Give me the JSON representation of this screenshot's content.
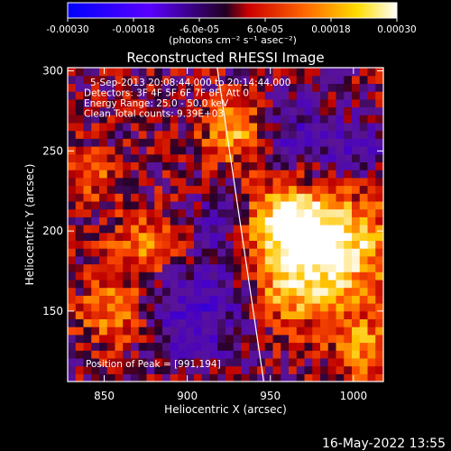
{
  "colorbar": {
    "ticks": [
      "-0.00030",
      "-0.00018",
      "-6.0e-05",
      "6.0e-05",
      "0.00018",
      "0.00030"
    ],
    "tick_values": [
      -0.0003,
      -0.00018,
      -6e-05,
      6e-05,
      0.00018,
      0.0003
    ],
    "range": [
      -0.0003,
      0.0003
    ],
    "units_label": "(photons cm⁻² s⁻¹ asec⁻²)",
    "colors": [
      "#0000ff",
      "#7a00ff",
      "#ff0000",
      "#ffcc00",
      "#ffffff"
    ]
  },
  "footer": {
    "timestamp": "16-May-2022 13:55"
  },
  "chart_data": {
    "type": "heatmap",
    "title": "Reconstructed RHESSI Image",
    "xlabel": "Heliocentric X (arcsec)",
    "ylabel": "Heliocentric Y (arcsec)",
    "xlim": [
      828,
      1018
    ],
    "ylim": [
      106,
      302
    ],
    "xticks": [
      850,
      900,
      950,
      1000
    ],
    "yticks": [
      150,
      200,
      250,
      300
    ],
    "grid": false,
    "annotations": [
      "5-Sep-2013 20:08:44.000 to 20:14:44.000",
      "Detectors: 3F 4F 5F 6F 7F 8F, Att 0",
      "Energy Range: 25.0 - 50.0 keV",
      "Clean     Total counts: 9.39E+03"
    ],
    "peak_label": "Position of Peak = [991,194]",
    "peak": [
      991,
      194
    ],
    "limb_line": [
      [
        918,
        302
      ],
      [
        946,
        106
      ]
    ],
    "hot_regions": [
      {
        "x": 986,
        "y": 190,
        "sigma": 24,
        "value": 0.0003
      },
      {
        "x": 955,
        "y": 205,
        "sigma": 18,
        "value": 0.00022
      },
      {
        "x": 930,
        "y": 262,
        "sigma": 14,
        "value": 0.0002
      },
      {
        "x": 875,
        "y": 190,
        "sigma": 16,
        "value": 0.00014
      },
      {
        "x": 855,
        "y": 148,
        "sigma": 14,
        "value": 0.00016
      },
      {
        "x": 1005,
        "y": 128,
        "sigma": 14,
        "value": 0.00015
      },
      {
        "x": 960,
        "y": 160,
        "sigma": 16,
        "value": 0.00012
      },
      {
        "x": 845,
        "y": 235,
        "sigma": 12,
        "value": 0.0001
      }
    ],
    "cold_regions": [
      {
        "x": 905,
        "y": 150,
        "sigma": 22,
        "value": -0.00016
      },
      {
        "x": 960,
        "y": 260,
        "sigma": 18,
        "value": -0.00012
      },
      {
        "x": 1000,
        "y": 250,
        "sigma": 16,
        "value": -0.0001
      },
      {
        "x": 925,
        "y": 205,
        "sigma": 16,
        "value": -0.00012
      }
    ]
  }
}
